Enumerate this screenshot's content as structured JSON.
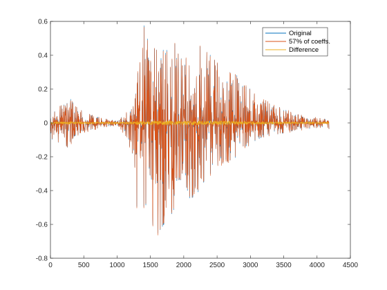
{
  "chart_data": {
    "type": "line",
    "title": "",
    "xlabel": "",
    "ylabel": "",
    "xlim": [
      0,
      4500
    ],
    "ylim": [
      -0.8,
      0.6
    ],
    "x_ticks": [
      0,
      500,
      1000,
      1500,
      2000,
      2500,
      3000,
      3500,
      4000,
      4500
    ],
    "y_ticks": [
      -0.8,
      -0.6,
      -0.4,
      -0.2,
      0,
      0.2,
      0.4,
      0.6
    ],
    "x_tick_labels": [
      "0",
      "500",
      "1000",
      "1500",
      "2000",
      "2500",
      "3000",
      "3500",
      "4000",
      "4500"
    ],
    "y_tick_labels": [
      "-0.8",
      "-0.6",
      "-0.4",
      "-0.2",
      "0",
      "0.2",
      "0.4",
      "0.6"
    ],
    "grid": false,
    "legend_placement": "top-right",
    "n_samples": 4180,
    "series": [
      {
        "name": "Original",
        "color": "#0072BD"
      },
      {
        "name": "57% of coeffs.",
        "color": "#D95319"
      },
      {
        "name": "Difference",
        "color": "#EDB120"
      }
    ],
    "envelope": {
      "description_units": "peak amplitude in data units at sample index",
      "upper": [
        [
          0,
          0.06
        ],
        [
          80,
          0.09
        ],
        [
          150,
          0.1
        ],
        [
          230,
          0.11
        ],
        [
          280,
          0.2
        ],
        [
          350,
          0.1
        ],
        [
          450,
          0.08
        ],
        [
          550,
          0.06
        ],
        [
          650,
          0.04
        ],
        [
          750,
          0.03
        ],
        [
          900,
          0.02
        ],
        [
          1000,
          0.01
        ],
        [
          1050,
          0.03
        ],
        [
          1150,
          0.08
        ],
        [
          1250,
          0.1
        ],
        [
          1300,
          0.25
        ],
        [
          1350,
          0.45
        ],
        [
          1400,
          0.58
        ],
        [
          1500,
          0.45
        ],
        [
          1650,
          0.42
        ],
        [
          1800,
          0.5
        ],
        [
          1900,
          0.45
        ],
        [
          2000,
          0.4
        ],
        [
          2100,
          0.48
        ],
        [
          2250,
          0.45
        ],
        [
          2400,
          0.4
        ],
        [
          2550,
          0.33
        ],
        [
          2700,
          0.3
        ],
        [
          2800,
          0.28
        ],
        [
          2900,
          0.22
        ],
        [
          3000,
          0.2
        ],
        [
          3100,
          0.15
        ],
        [
          3300,
          0.12
        ],
        [
          3500,
          0.08
        ],
        [
          3700,
          0.05
        ],
        [
          4000,
          0.03
        ],
        [
          4150,
          0.02
        ],
        [
          4180,
          0.06
        ]
      ],
      "lower": [
        [
          0,
          -0.1
        ],
        [
          80,
          -0.11
        ],
        [
          150,
          -0.12
        ],
        [
          280,
          -0.15
        ],
        [
          350,
          -0.08
        ],
        [
          450,
          -0.06
        ],
        [
          550,
          -0.05
        ],
        [
          750,
          -0.03
        ],
        [
          900,
          -0.02
        ],
        [
          1000,
          -0.01
        ],
        [
          1050,
          -0.03
        ],
        [
          1150,
          -0.1
        ],
        [
          1250,
          -0.2
        ],
        [
          1300,
          -0.52
        ],
        [
          1350,
          -0.55
        ],
        [
          1450,
          -0.5
        ],
        [
          1550,
          -0.62
        ],
        [
          1600,
          -0.66
        ],
        [
          1700,
          -0.6
        ],
        [
          1800,
          -0.58
        ],
        [
          1900,
          -0.5
        ],
        [
          2000,
          -0.4
        ],
        [
          2100,
          -0.45
        ],
        [
          2200,
          -0.42
        ],
        [
          2300,
          -0.35
        ],
        [
          2400,
          -0.3
        ],
        [
          2500,
          -0.25
        ],
        [
          2700,
          -0.22
        ],
        [
          2900,
          -0.18
        ],
        [
          3000,
          -0.12
        ],
        [
          3200,
          -0.08
        ],
        [
          3500,
          -0.06
        ],
        [
          3700,
          -0.04
        ],
        [
          4000,
          -0.03
        ],
        [
          4150,
          -0.02
        ],
        [
          4180,
          -0.04
        ]
      ]
    },
    "difference_amplitude": 0.012
  }
}
